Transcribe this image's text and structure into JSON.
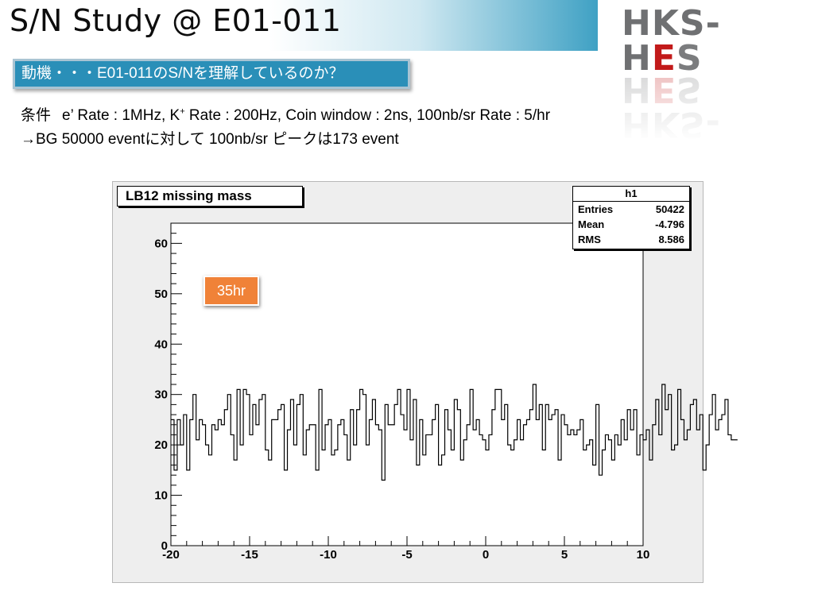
{
  "slide": {
    "title": "S/N Study @ E01-011",
    "logo": {
      "part1": "HKS-H",
      "part2": "E",
      "part3": "S"
    },
    "motive": "動機・・・E01-011のS/Nを理解しているのか？",
    "conditions": {
      "label": "条件",
      "line1_before": "e’ Rate : 1MHz, K",
      "line1_sup": "+",
      "line1_after": " Rate : 200Hz, Coin window : 2ns, 100nb/sr Rate : 5/hr",
      "line2": "→BG 50000 eventに対して 100nb/sr ピークは173 event"
    },
    "badge": "35hr"
  },
  "colors": {
    "title_gradient_end": "#3fa1c4",
    "motive_box": "#2a8fb8",
    "badge": "#f08238",
    "logo_red": "#c21a1a"
  },
  "chart_data": {
    "type": "histogram",
    "title": "LB12 missing mass",
    "xlim": [
      -20,
      10
    ],
    "ylim": [
      0,
      64
    ],
    "x_ticks": [
      -20,
      -15,
      -10,
      -5,
      0,
      5,
      10
    ],
    "y_ticks": [
      0,
      10,
      20,
      30,
      40,
      50,
      60
    ],
    "bin_width": 0.2,
    "values": [
      25,
      15,
      25,
      20,
      26,
      15,
      25,
      30,
      21,
      25,
      24,
      20,
      18,
      24,
      23,
      25,
      24,
      27,
      30,
      22,
      17,
      31,
      20,
      31,
      30,
      22,
      28,
      24,
      29,
      30,
      19,
      17,
      25,
      25,
      27,
      28,
      15,
      23,
      29,
      20,
      28,
      30,
      18,
      23,
      24,
      24,
      15,
      31,
      19,
      24,
      25,
      18,
      19,
      24,
      25,
      22,
      17,
      27,
      20,
      27,
      31,
      30,
      20,
      25,
      29,
      24,
      23,
      13,
      28,
      24,
      24,
      28,
      31,
      26,
      23,
      31,
      21,
      29,
      16,
      25,
      18,
      22,
      22,
      25,
      28,
      16,
      18,
      27,
      23,
      19,
      29,
      27,
      17,
      21,
      24,
      31,
      23,
      25,
      22,
      21,
      19,
      22,
      27,
      31,
      31,
      25,
      28,
      20,
      19,
      21,
      25,
      21,
      24,
      25,
      27,
      32,
      25,
      28,
      19,
      28,
      25,
      26,
      27,
      17,
      26,
      24,
      22,
      23,
      22,
      23,
      25,
      19,
      20,
      21,
      16,
      28,
      14,
      19,
      22,
      21,
      17,
      22,
      20,
      25,
      21,
      27,
      23,
      27,
      18,
      22,
      21,
      23,
      17,
      24,
      29,
      22,
      32,
      27,
      30,
      19,
      20,
      31,
      25,
      21,
      23,
      28,
      29,
      23,
      26,
      15,
      20,
      26,
      30,
      23,
      25,
      26,
      29,
      22,
      21,
      21
    ],
    "stats": {
      "name": "h1",
      "entries_label": "Entries",
      "entries": "50422",
      "mean_label": "Mean",
      "mean": "-4.796",
      "rms_label": "RMS",
      "rms": "8.586"
    }
  }
}
